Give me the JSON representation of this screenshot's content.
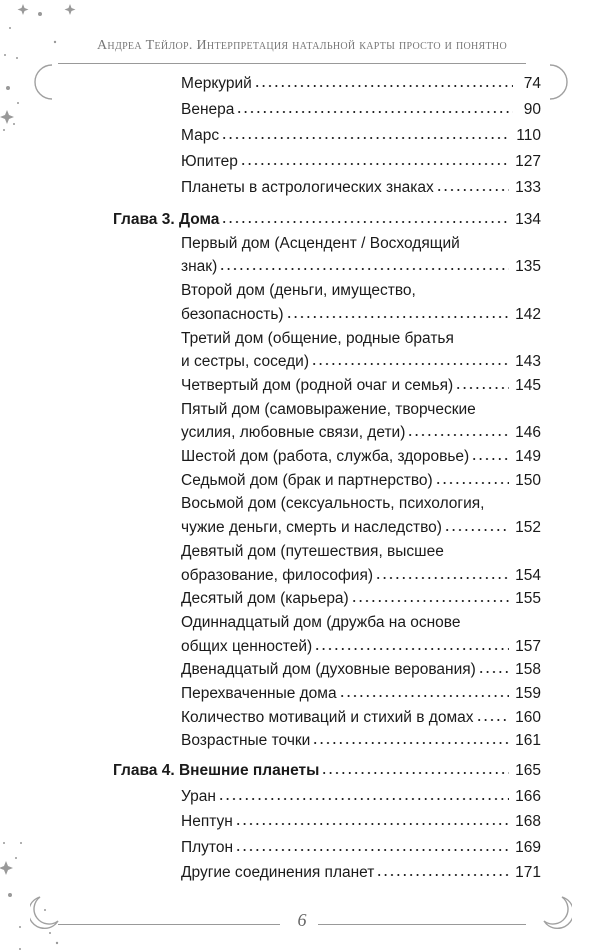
{
  "header": {
    "running_title": "Андреа Тейлор. Интерпретация натальной карты просто и понятно"
  },
  "toc": {
    "group1": [
      {
        "lines": [
          "Меркурий"
        ],
        "page": "74"
      },
      {
        "lines": [
          "Венера"
        ],
        "page": "90"
      },
      {
        "lines": [
          "Марс"
        ],
        "page": "110"
      },
      {
        "lines": [
          "Юпитер"
        ],
        "page": "127"
      },
      {
        "lines": [
          "Планеты в астрологических знаках"
        ],
        "page": "133"
      }
    ],
    "group2": [
      {
        "chapter": true,
        "lines": [
          "Глава 3. Дома"
        ],
        "page": "134"
      },
      {
        "lines": [
          "Первый дом (Асцендент / Восходящий",
          "знак)"
        ],
        "page": "135"
      },
      {
        "lines": [
          "Второй дом (деньги, имущество,",
          "безопасность)"
        ],
        "page": "142"
      },
      {
        "lines": [
          "Третий дом (общение, родные братья",
          "и сестры, соседи)"
        ],
        "page": "143"
      },
      {
        "lines": [
          "Четвертый дом (родной очаг и семья)"
        ],
        "page": "145"
      },
      {
        "lines": [
          "Пятый дом (самовыражение, творческие",
          "усилия, любовные связи, дети)"
        ],
        "page": "146"
      },
      {
        "lines": [
          "Шестой дом (работа, служба, здоровье)"
        ],
        "page": "149"
      },
      {
        "lines": [
          "Седьмой дом (брак и партнерство)"
        ],
        "page": "150"
      },
      {
        "lines": [
          "Восьмой дом (сексуальность, психология,",
          "чужие деньги, смерть и наследство)"
        ],
        "page": "152"
      },
      {
        "lines": [
          "Девятый дом (путешествия, высшее",
          "образование, философия)"
        ],
        "page": "154"
      },
      {
        "lines": [
          "Десятый дом (карьера)"
        ],
        "page": "155"
      },
      {
        "lines": [
          "Одиннадцатый дом (дружба на основе",
          "общих ценностей)"
        ],
        "page": "157"
      },
      {
        "lines": [
          "Двенадцатый дом (духовные верования)"
        ],
        "page": "158"
      },
      {
        "lines": [
          "Перехваченные дома"
        ],
        "page": "159"
      },
      {
        "lines": [
          "Количество мотиваций и стихий в домах"
        ],
        "page": "160"
      },
      {
        "lines": [
          "Возрастные точки"
        ],
        "page": "161"
      }
    ],
    "group3": [
      {
        "chapter": true,
        "lines": [
          "Глава 4. Внешние планеты"
        ],
        "page": "165"
      },
      {
        "lines": [
          "Уран"
        ],
        "page": "166"
      },
      {
        "lines": [
          "Нептун"
        ],
        "page": "168"
      },
      {
        "lines": [
          "Плутон"
        ],
        "page": "169"
      },
      {
        "lines": [
          "Другие соединения планет"
        ],
        "page": "171"
      }
    ]
  },
  "footer": {
    "page_number": "6"
  },
  "colors": {
    "ornament": "#a0a0a0",
    "text": "#1a1a1a"
  }
}
